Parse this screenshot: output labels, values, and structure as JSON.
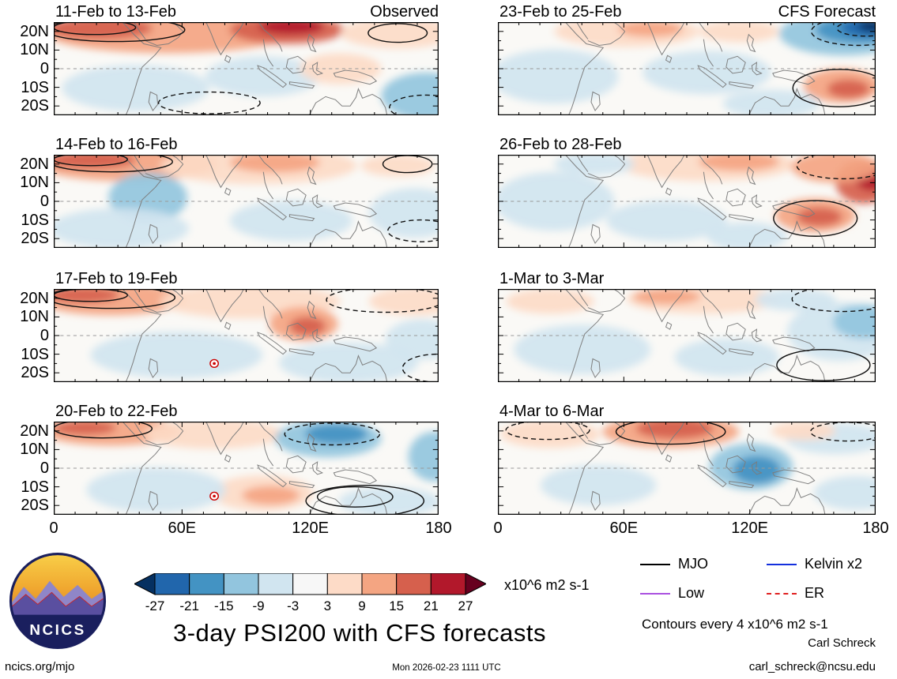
{
  "axes": {
    "y_ticks": [
      "20N",
      "10N",
      "0",
      "10S",
      "20S"
    ],
    "x_ticks": [
      "0",
      "60E",
      "120E",
      "180"
    ]
  },
  "chart_data": {
    "type": "heatmap",
    "title": "3-day PSI200 with CFS forecasts",
    "units": "x10^6 m2 s-1",
    "contour_note": "Contours every 4 x10^6 m2 s-1",
    "lon_range": [
      "0",
      "180"
    ],
    "lat_range": [
      "25S",
      "25N"
    ],
    "colorbar": {
      "levels": [
        "-27",
        "-21",
        "-15",
        "-9",
        "-3",
        "3",
        "9",
        "15",
        "21",
        "27"
      ],
      "colors": [
        "#053061",
        "#2166ac",
        "#4393c3",
        "#92c5de",
        "#d1e5f0",
        "#f7f7f7",
        "#fddbc7",
        "#f4a582",
        "#d6604d",
        "#b2182b",
        "#67001f"
      ]
    },
    "legend": [
      {
        "label": "MJO",
        "color": "#000000",
        "style": "solid"
      },
      {
        "label": "Kelvin x2",
        "color": "#1430dd",
        "style": "solid"
      },
      {
        "label": "Low",
        "color": "#aa50e0",
        "style": "solid"
      },
      {
        "label": "ER",
        "color": "#e02020",
        "style": "dashed"
      }
    ],
    "panels": [
      {
        "title": "11-Feb to 13-Feb",
        "col": 0,
        "row": 0,
        "corner": "Observed",
        "blobs": [
          [
            140,
            14,
            150,
            26,
            "#f4a582"
          ],
          [
            55,
            8,
            65,
            14,
            "#d6604d"
          ],
          [
            285,
            10,
            70,
            18,
            "#d6604d"
          ],
          [
            290,
            6,
            40,
            10,
            "#b2182b"
          ],
          [
            420,
            14,
            70,
            20,
            "#fddbc7"
          ],
          [
            100,
            85,
            90,
            30,
            "#d1e5f0"
          ],
          [
            255,
            70,
            70,
            26,
            "#d1e5f0"
          ],
          [
            455,
            95,
            55,
            30,
            "#92c5de"
          ],
          [
            350,
            60,
            50,
            20,
            "#fddbc7"
          ]
        ],
        "contours": [
          [
            75,
            10,
            85,
            15,
            "solid"
          ],
          [
            50,
            7,
            50,
            9,
            "solid"
          ],
          [
            420,
            14,
            36,
            12,
            "solid"
          ],
          [
            190,
            104,
            62,
            14,
            "dashed"
          ],
          [
            455,
            110,
            45,
            16,
            "dashed"
          ]
        ],
        "markers": []
      },
      {
        "title": "23-Feb to 25-Feb",
        "col": 1,
        "row": 0,
        "corner": "CFS Forecast",
        "blobs": [
          [
            430,
            15,
            80,
            28,
            "#92c5de"
          ],
          [
            450,
            10,
            55,
            18,
            "#4393c3"
          ],
          [
            462,
            7,
            35,
            12,
            "#2166ac"
          ],
          [
            468,
            5,
            20,
            8,
            "#053061"
          ],
          [
            160,
            12,
            90,
            20,
            "#fddbc7"
          ],
          [
            190,
            9,
            40,
            10,
            "#f4a582"
          ],
          [
            300,
            12,
            50,
            14,
            "#fddbc7"
          ],
          [
            70,
            70,
            80,
            35,
            "#d1e5f0"
          ],
          [
            260,
            65,
            80,
            28,
            "#d1e5f0"
          ],
          [
            428,
            82,
            48,
            22,
            "#f4a582"
          ],
          [
            436,
            86,
            26,
            12,
            "#d6604d"
          ],
          [
            340,
            105,
            60,
            18,
            "#d1e5f0"
          ]
        ],
        "contours": [
          [
            448,
            12,
            58,
            18,
            "dashed"
          ],
          [
            458,
            8,
            36,
            10,
            "dashed"
          ],
          [
            425,
            85,
            58,
            24,
            "solid"
          ]
        ],
        "markers": []
      },
      {
        "title": "14-Feb to 16-Feb",
        "col": 0,
        "row": 1,
        "corner": "",
        "blobs": [
          [
            90,
            12,
            110,
            22,
            "#f4a582"
          ],
          [
            45,
            7,
            55,
            11,
            "#d6604d"
          ],
          [
            250,
            14,
            120,
            24,
            "#fddbc7"
          ],
          [
            270,
            10,
            55,
            13,
            "#f4a582"
          ],
          [
            115,
            55,
            48,
            32,
            "#92c5de"
          ],
          [
            80,
            95,
            85,
            26,
            "#d1e5f0"
          ],
          [
            290,
            85,
            75,
            26,
            "#d1e5f0"
          ],
          [
            440,
            75,
            55,
            32,
            "#d1e5f0"
          ],
          [
            420,
            14,
            45,
            14,
            "#fddbc7"
          ]
        ],
        "contours": [
          [
            70,
            9,
            75,
            13,
            "solid"
          ],
          [
            45,
            6,
            45,
            8,
            "solid"
          ],
          [
            432,
            12,
            30,
            11,
            "solid"
          ],
          [
            448,
            98,
            40,
            14,
            "dashed"
          ]
        ],
        "markers": []
      },
      {
        "title": "26-Feb to 28-Feb",
        "col": 1,
        "row": 1,
        "corner": "",
        "blobs": [
          [
            260,
            12,
            110,
            22,
            "#fddbc7"
          ],
          [
            300,
            9,
            50,
            12,
            "#f4a582"
          ],
          [
            455,
            35,
            35,
            28,
            "#d6604d"
          ],
          [
            465,
            30,
            20,
            16,
            "#b2182b"
          ],
          [
            420,
            16,
            55,
            20,
            "#f4a582"
          ],
          [
            395,
            78,
            50,
            22,
            "#f4a582"
          ],
          [
            400,
            80,
            28,
            12,
            "#d6604d"
          ],
          [
            70,
            60,
            75,
            38,
            "#d1e5f0"
          ],
          [
            210,
            85,
            75,
            26,
            "#d1e5f0"
          ],
          [
            310,
            105,
            50,
            18,
            "#d1e5f0"
          ],
          [
            120,
            12,
            50,
            14,
            "#d1e5f0"
          ]
        ],
        "contours": [
          [
            430,
            14,
            58,
            17,
            "dashed"
          ],
          [
            395,
            82,
            52,
            23,
            "solid"
          ]
        ],
        "markers": []
      },
      {
        "title": "17-Feb to 19-Feb",
        "col": 0,
        "row": 2,
        "corner": "",
        "blobs": [
          [
            70,
            13,
            90,
            21,
            "#f4a582"
          ],
          [
            35,
            8,
            45,
            10,
            "#d6604d"
          ],
          [
            240,
            16,
            110,
            22,
            "#fddbc7"
          ],
          [
            305,
            45,
            42,
            22,
            "#f4a582"
          ],
          [
            310,
            48,
            22,
            12,
            "#d6604d"
          ],
          [
            440,
            16,
            55,
            18,
            "#fddbc7"
          ],
          [
            150,
            85,
            105,
            30,
            "#d1e5f0"
          ],
          [
            360,
            95,
            85,
            26,
            "#d1e5f0"
          ],
          [
            450,
            65,
            45,
            26,
            "#d1e5f0"
          ]
        ],
        "contours": [
          [
            70,
            11,
            78,
            14,
            "solid"
          ],
          [
            45,
            8,
            45,
            8,
            "solid"
          ],
          [
            405,
            14,
            72,
            16,
            "dashed"
          ],
          [
            468,
            102,
            42,
            18,
            "dashed"
          ]
        ],
        "markers": [
          [
            196,
            96
          ]
        ]
      },
      {
        "title": "1-Mar to 3-Mar",
        "col": 1,
        "row": 2,
        "corner": "",
        "blobs": [
          [
            255,
            13,
            95,
            19,
            "#fddbc7"
          ],
          [
            210,
            10,
            42,
            10,
            "#f4a582"
          ],
          [
            65,
            16,
            55,
            16,
            "#fddbc7"
          ],
          [
            425,
            55,
            65,
            38,
            "#d1e5f0"
          ],
          [
            455,
            42,
            38,
            22,
            "#92c5de"
          ],
          [
            105,
            78,
            85,
            32,
            "#d1e5f0"
          ],
          [
            285,
            88,
            65,
            24,
            "#d1e5f0"
          ],
          [
            370,
            14,
            50,
            14,
            "#d1e5f0"
          ]
        ],
        "contours": [
          [
            428,
            13,
            62,
            16,
            "dashed"
          ],
          [
            405,
            98,
            58,
            20,
            "solid"
          ]
        ],
        "markers": []
      },
      {
        "title": "20-Feb to 22-Feb",
        "col": 0,
        "row": 3,
        "corner": "",
        "blobs": [
          [
            70,
            12,
            85,
            19,
            "#f4a582"
          ],
          [
            38,
            8,
            38,
            9,
            "#d6604d"
          ],
          [
            195,
            16,
            85,
            19,
            "#fddbc7"
          ],
          [
            335,
            22,
            65,
            24,
            "#92c5de"
          ],
          [
            345,
            16,
            38,
            13,
            "#4393c3"
          ],
          [
            465,
            45,
            32,
            32,
            "#92c5de"
          ],
          [
            255,
            92,
            62,
            23,
            "#fddbc7"
          ],
          [
            265,
            95,
            35,
            12,
            "#f4a582"
          ],
          [
            125,
            88,
            85,
            29,
            "#d1e5f0"
          ],
          [
            410,
            103,
            62,
            19,
            "#d1e5f0"
          ]
        ],
        "contours": [
          [
            60,
            9,
            60,
            12,
            "solid"
          ],
          [
            340,
            16,
            58,
            14,
            "dashed"
          ],
          [
            380,
            102,
            72,
            20,
            "solid"
          ],
          [
            368,
            97,
            46,
            13,
            "solid"
          ]
        ],
        "markers": [
          [
            196,
            96
          ]
        ]
      },
      {
        "title": "4-Mar to 6-Mar",
        "col": 1,
        "row": 3,
        "corner": "",
        "blobs": [
          [
            215,
            13,
            85,
            21,
            "#f4a582"
          ],
          [
            220,
            9,
            48,
            13,
            "#d6604d"
          ],
          [
            65,
            16,
            62,
            18,
            "#fddbc7"
          ],
          [
            420,
            22,
            62,
            20,
            "#d1e5f0"
          ],
          [
            315,
            58,
            52,
            30,
            "#92c5de"
          ],
          [
            322,
            62,
            30,
            18,
            "#4393c3"
          ],
          [
            125,
            82,
            72,
            26,
            "#d1e5f0"
          ],
          [
            445,
            92,
            52,
            22,
            "#d1e5f0"
          ],
          [
            380,
            12,
            40,
            12,
            "#fddbc7"
          ]
        ],
        "contours": [
          [
            215,
            13,
            68,
            16,
            "solid"
          ],
          [
            62,
            11,
            52,
            12,
            "dashed"
          ],
          [
            435,
            13,
            46,
            12,
            "dashed"
          ]
        ],
        "markers": []
      }
    ]
  },
  "footer": {
    "logo_text": "NCICS",
    "site": "ncics.org/mjo",
    "timestamp": "Mon 2026-02-23 1111 UTC",
    "author": "Carl Schreck",
    "email": "carl_schreck@ncsu.edu"
  }
}
